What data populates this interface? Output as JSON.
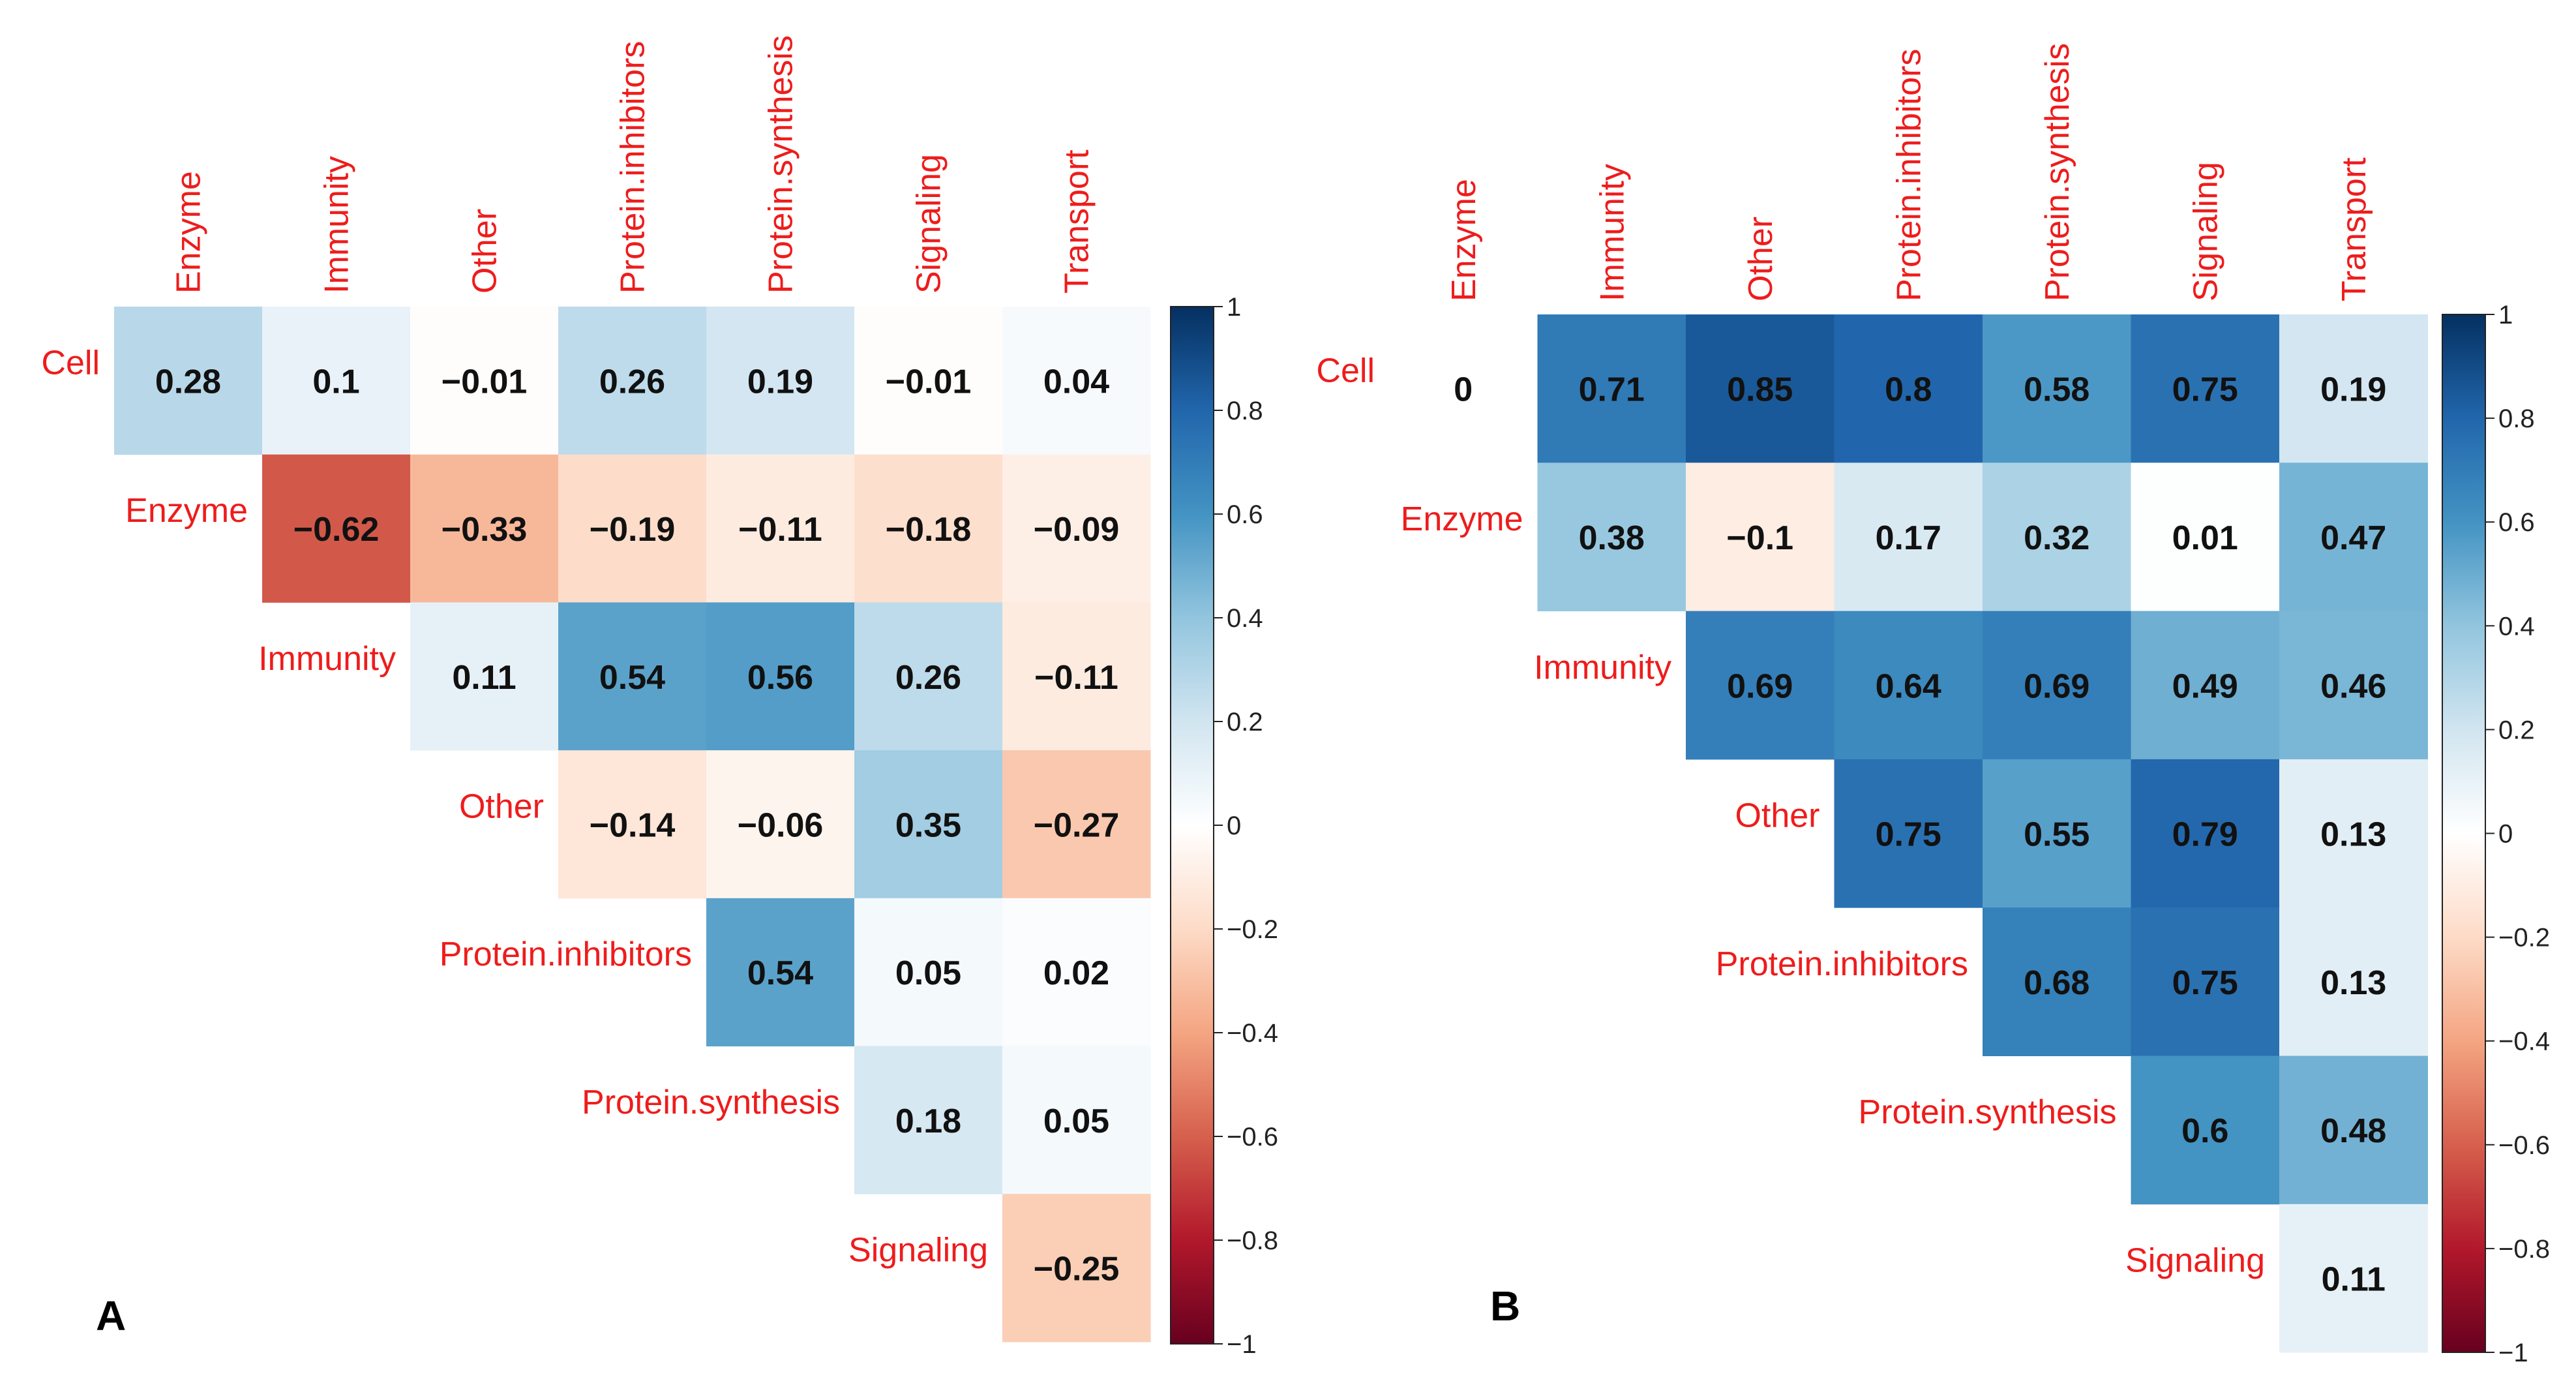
{
  "chart_data": [
    {
      "panel_label": "A",
      "type": "heatmap",
      "layout": "upper-triangle",
      "row_labels": [
        "Cell",
        "Enzyme",
        "Immunity",
        "Other",
        "Protein.inhibitors",
        "Protein.synthesis",
        "Signaling"
      ],
      "col_labels": [
        "Enzyme",
        "Immunity",
        "Other",
        "Protein.inhibitors",
        "Protein.synthesis",
        "Signaling",
        "Transport"
      ],
      "values": [
        [
          0.28,
          0.1,
          -0.01,
          0.26,
          0.19,
          -0.01,
          0.04
        ],
        [
          null,
          -0.62,
          -0.33,
          -0.19,
          -0.11,
          -0.18,
          -0.09
        ],
        [
          null,
          null,
          0.11,
          0.54,
          0.56,
          0.26,
          -0.11
        ],
        [
          null,
          null,
          null,
          -0.14,
          -0.06,
          0.35,
          -0.27
        ],
        [
          null,
          null,
          null,
          null,
          0.54,
          0.05,
          0.02
        ],
        [
          null,
          null,
          null,
          null,
          null,
          0.18,
          0.05
        ],
        [
          null,
          null,
          null,
          null,
          null,
          null,
          -0.25
        ]
      ],
      "value_labels": [
        [
          "0.28",
          "0.1",
          "−0.01",
          "0.26",
          "0.19",
          "−0.01",
          "0.04"
        ],
        [
          "",
          "−0.62",
          "−0.33",
          "−0.19",
          "−0.11",
          "−0.18",
          "−0.09"
        ],
        [
          "",
          "",
          "0.11",
          "0.54",
          "0.56",
          "0.26",
          "−0.11"
        ],
        [
          "",
          "",
          "",
          "−0.14",
          "−0.06",
          "0.35",
          "−0.27"
        ],
        [
          "",
          "",
          "",
          "",
          "0.54",
          "0.05",
          "0.02"
        ],
        [
          "",
          "",
          "",
          "",
          "",
          "0.18",
          "0.05"
        ],
        [
          "",
          "",
          "",
          "",
          "",
          "",
          "−0.25"
        ]
      ],
      "colorbar": {
        "range": [
          -1,
          1
        ],
        "ticks": [
          1,
          0.8,
          0.6,
          0.4,
          0.2,
          0,
          -0.2,
          -0.4,
          -0.6,
          -0.8,
          -1
        ],
        "tick_labels": [
          "1",
          "0.8",
          "0.6",
          "0.4",
          "0.2",
          "0",
          "−0.2",
          "−0.4",
          "−0.6",
          "−0.8",
          "−1"
        ]
      }
    },
    {
      "panel_label": "B",
      "type": "heatmap",
      "layout": "upper-triangle",
      "row_labels": [
        "Cell",
        "Enzyme",
        "Immunity",
        "Other",
        "Protein.inhibitors",
        "Protein.synthesis",
        "Signaling"
      ],
      "col_labels": [
        "Enzyme",
        "Immunity",
        "Other",
        "Protein.inhibitors",
        "Protein.synthesis",
        "Signaling",
        "Transport"
      ],
      "values": [
        [
          0,
          0.71,
          0.85,
          0.8,
          0.58,
          0.75,
          0.19
        ],
        [
          null,
          0.38,
          -0.1,
          0.17,
          0.32,
          0.01,
          0.47
        ],
        [
          null,
          null,
          0.69,
          0.64,
          0.69,
          0.49,
          0.46
        ],
        [
          null,
          null,
          null,
          0.75,
          0.55,
          0.79,
          0.13
        ],
        [
          null,
          null,
          null,
          null,
          0.68,
          0.75,
          0.13
        ],
        [
          null,
          null,
          null,
          null,
          null,
          0.6,
          0.48
        ],
        [
          null,
          null,
          null,
          null,
          null,
          null,
          0.11
        ]
      ],
      "value_labels": [
        [
          "0",
          "0.71",
          "0.85",
          "0.8",
          "0.58",
          "0.75",
          "0.19"
        ],
        [
          "",
          "0.38",
          "−0.1",
          "0.17",
          "0.32",
          "0.01",
          "0.47"
        ],
        [
          "",
          "",
          "0.69",
          "0.64",
          "0.69",
          "0.49",
          "0.46"
        ],
        [
          "",
          "",
          "",
          "0.75",
          "0.55",
          "0.79",
          "0.13"
        ],
        [
          "",
          "",
          "",
          "",
          "0.68",
          "0.75",
          "0.13"
        ],
        [
          "",
          "",
          "",
          "",
          "",
          "0.6",
          "0.48"
        ],
        [
          "",
          "",
          "",
          "",
          "",
          "",
          "0.11"
        ]
      ],
      "colorbar": {
        "range": [
          -1,
          1
        ],
        "ticks": [
          1,
          0.8,
          0.6,
          0.4,
          0.2,
          0,
          -0.2,
          -0.4,
          -0.6,
          -0.8,
          -1
        ],
        "tick_labels": [
          "1",
          "0.8",
          "0.6",
          "0.4",
          "0.2",
          "0",
          "−0.2",
          "−0.4",
          "−0.6",
          "−0.8",
          "−1"
        ]
      }
    }
  ],
  "colors": {
    "label_text": "#ee1c1c",
    "value_text": "#111111",
    "scale": [
      "#67001f",
      "#b2182b",
      "#d6604d",
      "#f4a582",
      "#fddbc7",
      "#ffffff",
      "#d1e5f0",
      "#92c5de",
      "#4393c3",
      "#2166ac",
      "#053061"
    ]
  }
}
